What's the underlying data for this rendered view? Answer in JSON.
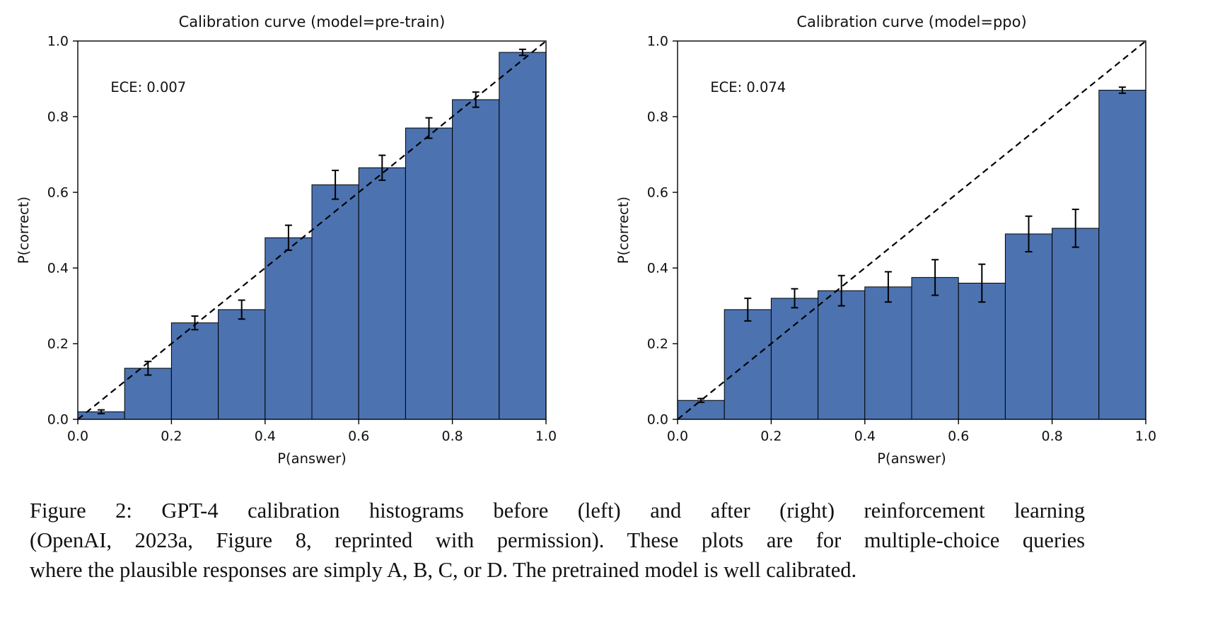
{
  "page": {
    "background": "#ffffff"
  },
  "figure": {
    "caption_lines": [
      "Figure 2:  GPT-4 calibration histograms before (left) and after (right) reinforcement learning",
      "(OpenAI, 2023a, Figure 8, reprinted with permission). These plots are for multiple-choice queries",
      "where the plausible responses are simply A, B, C, or D. The pretrained model is well calibrated."
    ]
  },
  "chart_data": [
    {
      "type": "bar",
      "title": "Calibration curve (model=pre-train)",
      "annotation": "ECE: 0.007",
      "xlabel": "P(answer)",
      "ylabel": "P(correct)",
      "xlim": [
        0,
        1
      ],
      "ylim": [
        0,
        1
      ],
      "xticks": [
        "0.0",
        "0.2",
        "0.4",
        "0.6",
        "0.8",
        "1.0"
      ],
      "yticks": [
        "0.0",
        "0.2",
        "0.4",
        "0.6",
        "0.8",
        "1.0"
      ],
      "bin_width": 0.1,
      "bin_centers": [
        0.05,
        0.15,
        0.25,
        0.35,
        0.45,
        0.55,
        0.65,
        0.75,
        0.85,
        0.95
      ],
      "values": [
        0.02,
        0.135,
        0.255,
        0.29,
        0.48,
        0.62,
        0.665,
        0.77,
        0.845,
        0.97
      ],
      "errors": [
        0.005,
        0.018,
        0.018,
        0.025,
        0.033,
        0.038,
        0.033,
        0.027,
        0.02,
        0.008
      ],
      "bar_color": "#4c72b0",
      "bar_edge_color": "#000000",
      "diagonal": true,
      "grid": false
    },
    {
      "type": "bar",
      "title": "Calibration curve (model=ppo)",
      "annotation": "ECE: 0.074",
      "xlabel": "P(answer)",
      "ylabel": "P(correct)",
      "xlim": [
        0,
        1
      ],
      "ylim": [
        0,
        1
      ],
      "xticks": [
        "0.0",
        "0.2",
        "0.4",
        "0.6",
        "0.8",
        "1.0"
      ],
      "yticks": [
        "0.0",
        "0.2",
        "0.4",
        "0.6",
        "0.8",
        "1.0"
      ],
      "bin_width": 0.1,
      "bin_centers": [
        0.05,
        0.15,
        0.25,
        0.35,
        0.45,
        0.55,
        0.65,
        0.75,
        0.85,
        0.95
      ],
      "values": [
        0.05,
        0.29,
        0.32,
        0.34,
        0.35,
        0.375,
        0.36,
        0.49,
        0.505,
        0.87
      ],
      "errors": [
        0.005,
        0.03,
        0.025,
        0.04,
        0.04,
        0.047,
        0.05,
        0.047,
        0.05,
        0.008
      ],
      "bar_color": "#4c72b0",
      "bar_edge_color": "#000000",
      "diagonal": true,
      "grid": false
    }
  ]
}
